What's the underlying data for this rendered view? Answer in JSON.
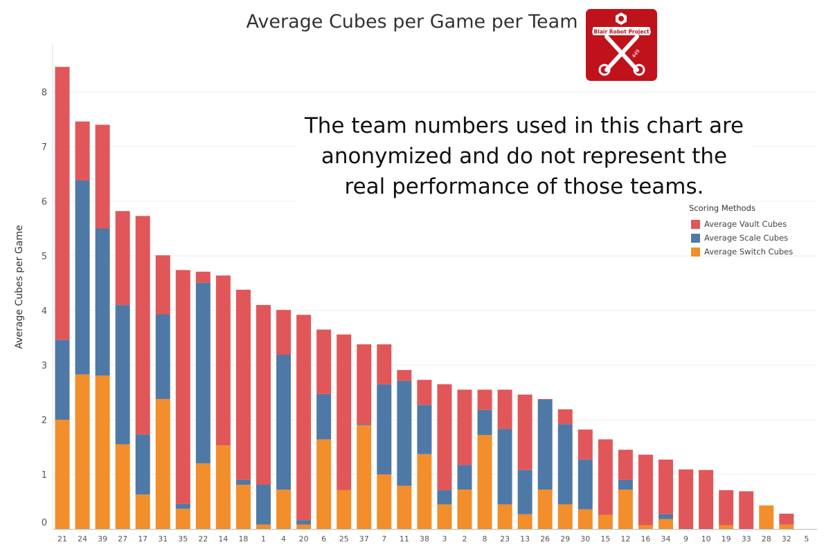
{
  "chart_data": {
    "type": "bar",
    "stacked": true,
    "title": "Average Cubes per Game per Team",
    "ylabel": "Average Cubes per Game",
    "xlabel": "",
    "ylim": [
      0,
      8.6
    ],
    "yticks": [
      0,
      1,
      2,
      3,
      4,
      5,
      6,
      7,
      8
    ],
    "grid": true,
    "legend_position": "right",
    "legend_title": "Scoring Methods",
    "categories": [
      "21",
      "24",
      "39",
      "27",
      "17",
      "31",
      "35",
      "22",
      "14",
      "18",
      "1",
      "4",
      "20",
      "6",
      "25",
      "37",
      "7",
      "11",
      "38",
      "3",
      "2",
      "8",
      "23",
      "13",
      "26",
      "29",
      "30",
      "15",
      "12",
      "16",
      "34",
      "9",
      "10",
      "19",
      "33",
      "28",
      "32",
      "5"
    ],
    "series": [
      {
        "name": "Average Switch Cubes",
        "color": "#f28e2b",
        "values": [
          2.0,
          2.83,
          2.81,
          1.55,
          0.63,
          2.38,
          0.37,
          1.2,
          1.53,
          0.81,
          0.08,
          0.72,
          0.08,
          1.64,
          0.71,
          1.9,
          1.0,
          0.79,
          1.37,
          0.45,
          0.72,
          1.72,
          0.45,
          0.27,
          0.72,
          0.45,
          0.36,
          0.26,
          0.72,
          0.07,
          0.18,
          0.0,
          0.0,
          0.07,
          0.0,
          0.43,
          0.08,
          0.0
        ]
      },
      {
        "name": "Average Scale Cubes",
        "color": "#4e79a7",
        "values": [
          1.46,
          3.55,
          2.69,
          2.55,
          1.1,
          1.55,
          0.09,
          3.31,
          0.0,
          0.09,
          0.73,
          2.47,
          0.08,
          0.83,
          0.0,
          0.02,
          1.65,
          1.92,
          0.9,
          0.26,
          0.45,
          0.46,
          1.38,
          0.81,
          1.65,
          1.47,
          0.91,
          0.0,
          0.18,
          0.0,
          0.09,
          0.0,
          0.0,
          0.0,
          0.0,
          0.0,
          0.0,
          0.0
        ]
      },
      {
        "name": "Average Vault Cubes",
        "color": "#e15759",
        "values": [
          5.0,
          1.08,
          1.9,
          1.72,
          4.0,
          1.08,
          4.28,
          0.2,
          3.11,
          3.48,
          3.29,
          0.82,
          3.76,
          1.18,
          2.85,
          1.46,
          0.73,
          0.2,
          0.46,
          1.94,
          1.38,
          0.37,
          0.72,
          1.38,
          0.01,
          0.27,
          0.55,
          1.38,
          0.55,
          1.29,
          1.0,
          1.09,
          1.08,
          0.64,
          0.69,
          0.0,
          0.2,
          0.0
        ]
      }
    ]
  },
  "notice_lines": [
    "The team numbers used in this chart are",
    "anonymized and do not represent the",
    "real performance of those teams."
  ],
  "logo": {
    "text": "Blair Robot Project",
    "number": "449",
    "background": "#c0121a"
  }
}
